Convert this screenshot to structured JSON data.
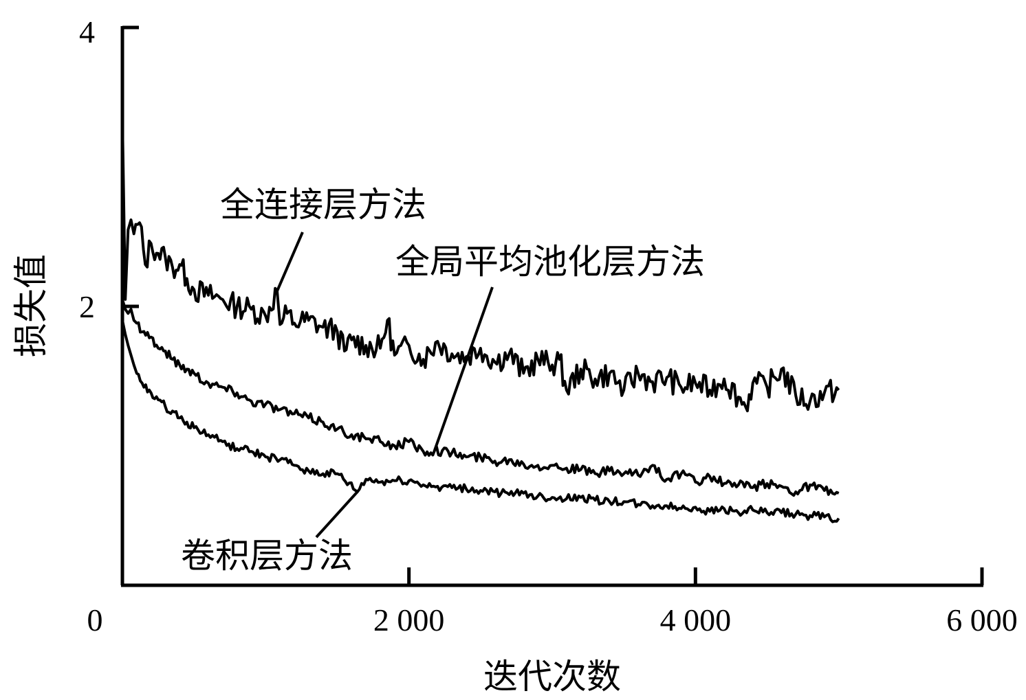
{
  "chart_data": {
    "type": "line",
    "title": "",
    "xlabel": "迭代次数",
    "ylabel": "损失值",
    "xlim": [
      0,
      6000
    ],
    "ylim": [
      0,
      4
    ],
    "x_ticks": [
      {
        "value": 0,
        "label": "0"
      },
      {
        "value": 2000,
        "label": "2 000"
      },
      {
        "value": 4000,
        "label": "4 000"
      },
      {
        "value": 6000,
        "label": "6 000"
      }
    ],
    "y_ticks": [
      {
        "value": 2,
        "label": "2"
      },
      {
        "value": 4,
        "label": "4"
      }
    ],
    "grid": false,
    "legend": "none",
    "annotations": [
      {
        "text": "全连接层方法",
        "series": 0,
        "point": [
          1080,
          2.11
        ]
      },
      {
        "text": "全局平均池化层方法",
        "series": 1,
        "point": [
          2180,
          0.97
        ]
      },
      {
        "text": "卷积层方法",
        "series": 2,
        "point": [
          1640,
          0.67
        ]
      }
    ],
    "series": [
      {
        "name": "全连接层方法",
        "x": [
          0,
          20,
          40,
          60,
          80,
          120,
          160,
          200,
          250,
          300,
          350,
          400,
          450,
          500,
          600,
          700,
          800,
          900,
          1000,
          1080,
          1100,
          1150,
          1200,
          1300,
          1400,
          1500,
          1550,
          1600,
          1700,
          1800,
          1850,
          1900,
          2000,
          2100,
          2200,
          2300,
          2400,
          2500,
          2600,
          2700,
          2800,
          2900,
          3000,
          3050,
          3100,
          3200,
          3300,
          3400,
          3500,
          3600,
          3700,
          3800,
          3900,
          4000,
          4100,
          4200,
          4300,
          4350,
          4400,
          4500,
          4600,
          4700,
          4800,
          4900,
          5000
        ],
        "y": [
          3.35,
          2.05,
          2.55,
          2.62,
          2.52,
          2.6,
          2.3,
          2.45,
          2.38,
          2.35,
          2.28,
          2.3,
          2.2,
          2.12,
          2.08,
          2.05,
          2.0,
          1.98,
          1.93,
          2.11,
          1.87,
          1.95,
          1.88,
          1.9,
          1.85,
          1.82,
          1.68,
          1.76,
          1.72,
          1.7,
          1.9,
          1.65,
          1.72,
          1.62,
          1.75,
          1.66,
          1.64,
          1.7,
          1.6,
          1.66,
          1.52,
          1.62,
          1.58,
          1.62,
          1.4,
          1.55,
          1.48,
          1.52,
          1.4,
          1.52,
          1.46,
          1.49,
          1.42,
          1.45,
          1.4,
          1.48,
          1.35,
          1.28,
          1.45,
          1.42,
          1.55,
          1.36,
          1.32,
          1.38,
          1.4
        ]
      },
      {
        "name": "全局平均池化层方法",
        "x": [
          0,
          20,
          40,
          60,
          80,
          100,
          150,
          200,
          250,
          300,
          350,
          400,
          450,
          500,
          600,
          700,
          800,
          900,
          1000,
          1100,
          1200,
          1300,
          1400,
          1500,
          1600,
          1700,
          1800,
          1900,
          2000,
          2100,
          2180,
          2300,
          2400,
          2500,
          2600,
          2700,
          2800,
          2900,
          3000,
          3100,
          3200,
          3300,
          3400,
          3500,
          3600,
          3700,
          3800,
          3900,
          4000,
          4100,
          4200,
          4300,
          4400,
          4500,
          4600,
          4700,
          4800,
          4900,
          5000
        ],
        "y": [
          2.05,
          1.98,
          1.95,
          1.98,
          1.9,
          1.88,
          1.82,
          1.78,
          1.7,
          1.68,
          1.62,
          1.58,
          1.55,
          1.52,
          1.45,
          1.42,
          1.38,
          1.32,
          1.3,
          1.26,
          1.23,
          1.2,
          1.17,
          1.12,
          1.08,
          1.05,
          1.03,
          1.0,
          1.03,
          0.96,
          0.97,
          0.95,
          0.92,
          0.92,
          0.89,
          0.9,
          0.87,
          0.86,
          0.86,
          0.84,
          0.83,
          0.8,
          0.82,
          0.8,
          0.79,
          0.86,
          0.76,
          0.8,
          0.74,
          0.78,
          0.73,
          0.72,
          0.7,
          0.73,
          0.71,
          0.67,
          0.72,
          0.68,
          0.66
        ]
      },
      {
        "name": "卷积层方法",
        "x": [
          0,
          20,
          40,
          60,
          80,
          100,
          150,
          200,
          250,
          300,
          350,
          400,
          450,
          500,
          600,
          700,
          800,
          900,
          1000,
          1100,
          1200,
          1300,
          1400,
          1500,
          1640,
          1700,
          1800,
          1900,
          2000,
          2100,
          2200,
          2300,
          2400,
          2500,
          2600,
          2700,
          2800,
          2900,
          3000,
          3100,
          3200,
          3300,
          3400,
          3500,
          3600,
          3700,
          3800,
          3900,
          4000,
          4100,
          4200,
          4300,
          4400,
          4500,
          4600,
          4700,
          4800,
          4900,
          5000
        ],
        "y": [
          1.9,
          1.8,
          1.72,
          1.65,
          1.58,
          1.52,
          1.42,
          1.38,
          1.33,
          1.28,
          1.25,
          1.2,
          1.17,
          1.13,
          1.08,
          1.03,
          0.98,
          0.96,
          0.92,
          0.9,
          0.86,
          0.82,
          0.8,
          0.8,
          0.67,
          0.76,
          0.74,
          0.75,
          0.75,
          0.72,
          0.71,
          0.7,
          0.69,
          0.68,
          0.67,
          0.65,
          0.66,
          0.64,
          0.63,
          0.62,
          0.63,
          0.61,
          0.6,
          0.6,
          0.58,
          0.57,
          0.57,
          0.55,
          0.56,
          0.53,
          0.55,
          0.52,
          0.54,
          0.52,
          0.52,
          0.51,
          0.5,
          0.49,
          0.48
        ]
      }
    ]
  }
}
